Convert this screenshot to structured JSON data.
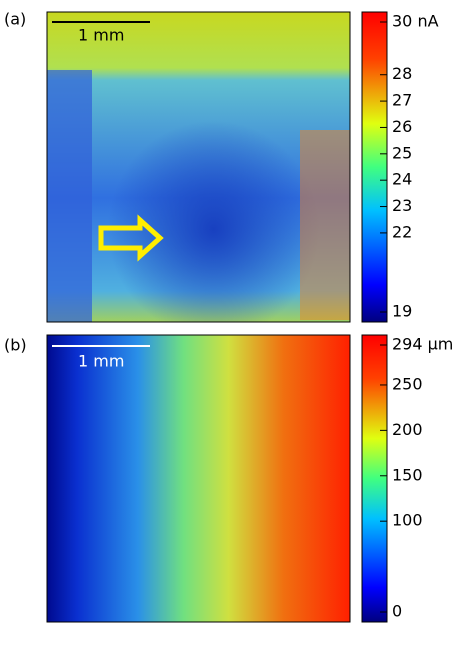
{
  "chart_data": [
    {
      "type": "heatmap",
      "panel_label": "(a)",
      "scale_bar_label": "1 mm",
      "clim": [
        19,
        30
      ],
      "cticks": [
        {
          "value": 30,
          "label": "30 nA"
        },
        28,
        27,
        26,
        25,
        24,
        23,
        22,
        19
      ]
    },
    {
      "type": "heatmap",
      "panel_label": "(b)",
      "scale_bar_label": "1 mm",
      "clim": [
        0,
        294
      ],
      "cticks": [
        {
          "value": 294,
          "label": "294 μm"
        },
        250,
        200,
        150,
        100,
        0
      ]
    }
  ]
}
